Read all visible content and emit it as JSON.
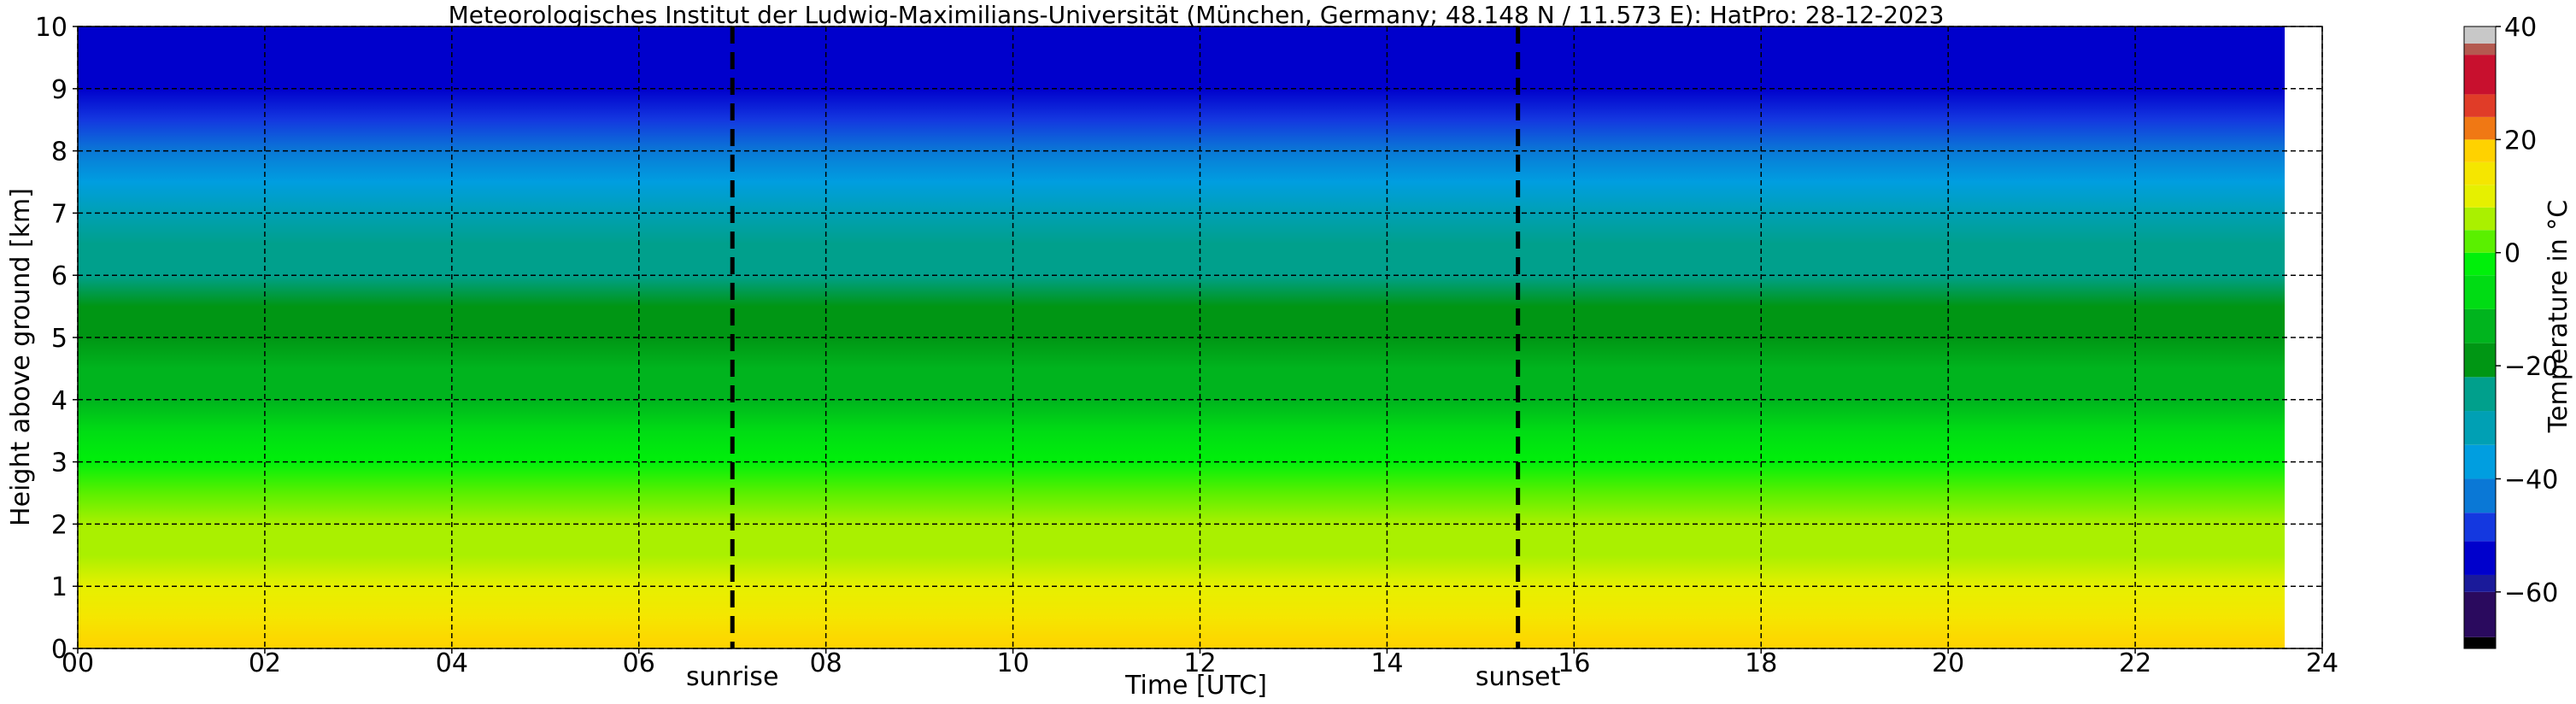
{
  "chart_data": {
    "type": "heatmap",
    "title": "Meteorologisches Institut der Ludwig-Maximilians-Universität (München, Germany; 48.148 N / 11.573 E):    HatPro: 28-12-2023",
    "xlabel": "Time [UTC]",
    "ylabel": "Height above ground [km]",
    "x_ticks": [
      "00",
      "02",
      "04",
      "06",
      "08",
      "10",
      "12",
      "14",
      "16",
      "18",
      "20",
      "22",
      "24"
    ],
    "y_ticks": [
      "0",
      "1",
      "2",
      "3",
      "4",
      "5",
      "6",
      "7",
      "8",
      "9",
      "10"
    ],
    "xlim": [
      0,
      24
    ],
    "ylim": [
      0,
      10
    ],
    "grid": true,
    "annotations": [
      {
        "label": "sunrise",
        "x": 7.0
      },
      {
        "label": "sunset",
        "x": 15.4
      }
    ],
    "data_end_hour": 23.6,
    "colorbar": {
      "label": "Temperature in °C",
      "ticks": [
        "40",
        "20",
        "0",
        "−20",
        "−40",
        "−60"
      ],
      "range": [
        -70,
        40
      ],
      "colors": [
        {
          "from": -70,
          "to": -68,
          "color": "#000000"
        },
        {
          "from": -68,
          "to": -60,
          "color": "#2a0a5e"
        },
        {
          "from": -60,
          "to": -57,
          "color": "#1a1a9a"
        },
        {
          "from": -57,
          "to": -51,
          "color": "#0000cc"
        },
        {
          "from": -51,
          "to": -46,
          "color": "#1438e0"
        },
        {
          "from": -46,
          "to": -40,
          "color": "#0a78d6"
        },
        {
          "from": -40,
          "to": -34,
          "color": "#009ee0"
        },
        {
          "from": -34,
          "to": -28,
          "color": "#00a0b4"
        },
        {
          "from": -28,
          "to": -22,
          "color": "#00a08c"
        },
        {
          "from": -22,
          "to": -16,
          "color": "#009614"
        },
        {
          "from": -16,
          "to": -10,
          "color": "#00b41e"
        },
        {
          "from": -10,
          "to": -4,
          "color": "#00dc14"
        },
        {
          "from": -4,
          "to": 0,
          "color": "#00f00a"
        },
        {
          "from": 0,
          "to": 4,
          "color": "#5af000"
        },
        {
          "from": 4,
          "to": 8,
          "color": "#aaf000"
        },
        {
          "from": 8,
          "to": 12,
          "color": "#e6f000"
        },
        {
          "from": 12,
          "to": 16,
          "color": "#f5e600"
        },
        {
          "from": 16,
          "to": 20,
          "color": "#ffd200"
        },
        {
          "from": 20,
          "to": 24,
          "color": "#f07814"
        },
        {
          "from": 24,
          "to": 28,
          "color": "#e03c28"
        },
        {
          "from": 28,
          "to": 35,
          "color": "#c8102e"
        },
        {
          "from": 35,
          "to": 37,
          "color": "#b45a50"
        },
        {
          "from": 37,
          "to": 40,
          "color": "#c8c8c8"
        }
      ]
    },
    "profile": [
      {
        "height_km": 0.0,
        "temp_c": 18
      },
      {
        "height_km": 0.5,
        "temp_c": 15
      },
      {
        "height_km": 1.0,
        "temp_c": 11
      },
      {
        "height_km": 1.5,
        "temp_c": 7
      },
      {
        "height_km": 2.0,
        "temp_c": 4
      },
      {
        "height_km": 2.5,
        "temp_c": 0
      },
      {
        "height_km": 3.0,
        "temp_c": -4
      },
      {
        "height_km": 3.5,
        "temp_c": -8
      },
      {
        "height_km": 4.0,
        "temp_c": -11
      },
      {
        "height_km": 4.5,
        "temp_c": -15
      },
      {
        "height_km": 5.0,
        "temp_c": -18
      },
      {
        "height_km": 5.5,
        "temp_c": -20
      },
      {
        "height_km": 6.0,
        "temp_c": -24
      },
      {
        "height_km": 6.5,
        "temp_c": -28
      },
      {
        "height_km": 7.0,
        "temp_c": -32
      },
      {
        "height_km": 7.5,
        "temp_c": -36
      },
      {
        "height_km": 8.0,
        "temp_c": -41
      },
      {
        "height_km": 8.5,
        "temp_c": -47
      },
      {
        "height_km": 9.0,
        "temp_c": -52
      },
      {
        "height_km": 9.5,
        "temp_c": -55
      },
      {
        "height_km": 10.0,
        "temp_c": -56
      }
    ]
  }
}
